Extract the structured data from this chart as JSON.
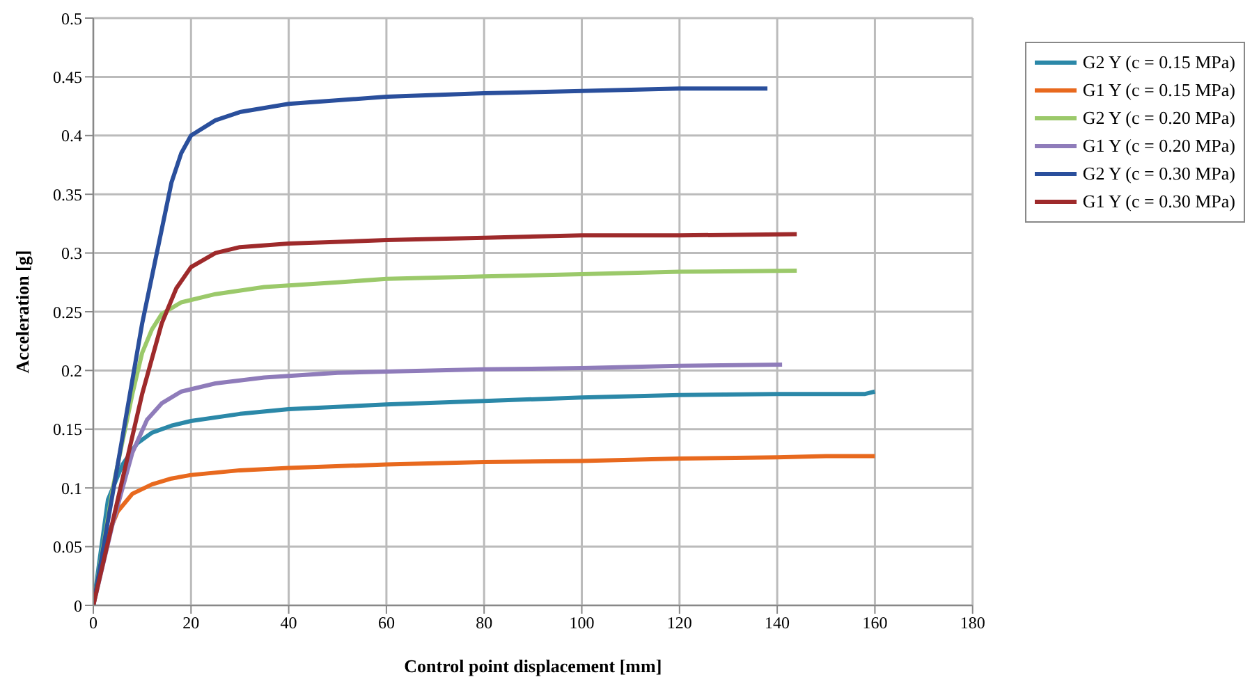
{
  "chart_data": {
    "type": "line",
    "xlabel": "Control point displacement  [mm]",
    "ylabel": "Acceleration [g]",
    "xlim": [
      0,
      180
    ],
    "xticks": [
      0,
      20,
      40,
      60,
      80,
      100,
      120,
      140,
      160,
      180
    ],
    "ylim": [
      0,
      0.5
    ],
    "yticks": [
      0,
      0.05,
      0.1,
      0.15,
      0.2,
      0.25,
      0.3,
      0.35,
      0.4,
      0.45,
      0.5
    ],
    "grid": true,
    "legend": "top right",
    "marker": "none",
    "line_style": "solid",
    "series": [
      {
        "name": "G2 Y (c = 0.15 MPa)",
        "color": "#2b88a8",
        "x": [
          0,
          3,
          6,
          9,
          12,
          16,
          20,
          30,
          40,
          60,
          80,
          100,
          120,
          140,
          158,
          160
        ],
        "values": [
          0,
          0.09,
          0.12,
          0.138,
          0.147,
          0.153,
          0.157,
          0.163,
          0.167,
          0.171,
          0.174,
          0.177,
          0.179,
          0.18,
          0.18,
          0.182
        ]
      },
      {
        "name": "G1 Y (c = 0.15 MPa)",
        "color": "#e8691e",
        "x": [
          0,
          3,
          5,
          8,
          12,
          16,
          20,
          30,
          40,
          60,
          80,
          100,
          120,
          140,
          150,
          160
        ],
        "values": [
          0,
          0.06,
          0.08,
          0.095,
          0.103,
          0.108,
          0.111,
          0.115,
          0.117,
          0.12,
          0.122,
          0.123,
          0.125,
          0.126,
          0.127,
          0.127
        ]
      },
      {
        "name": "G2 Y (c = 0.20 MPa)",
        "color": "#9bc96a",
        "x": [
          0,
          4,
          8,
          10,
          12,
          14,
          18,
          25,
          35,
          50,
          60,
          80,
          100,
          120,
          144
        ],
        "values": [
          0,
          0.1,
          0.18,
          0.215,
          0.235,
          0.248,
          0.258,
          0.265,
          0.271,
          0.275,
          0.278,
          0.28,
          0.282,
          0.284,
          0.285
        ]
      },
      {
        "name": "G1 Y (c = 0.20 MPa)",
        "color": "#8f7cba",
        "x": [
          0,
          4,
          8,
          11,
          14,
          18,
          25,
          35,
          50,
          60,
          80,
          100,
          120,
          141
        ],
        "values": [
          0,
          0.07,
          0.13,
          0.158,
          0.172,
          0.182,
          0.189,
          0.194,
          0.198,
          0.199,
          0.201,
          0.202,
          0.204,
          0.205
        ]
      },
      {
        "name": "G2 Y (c = 0.30 MPa)",
        "color": "#2a4f9c",
        "x": [
          0,
          5,
          10,
          13,
          16,
          18,
          20,
          25,
          30,
          40,
          60,
          80,
          100,
          120,
          138
        ],
        "values": [
          0,
          0.12,
          0.24,
          0.3,
          0.36,
          0.385,
          0.4,
          0.413,
          0.42,
          0.427,
          0.433,
          0.436,
          0.438,
          0.44,
          0.44
        ]
      },
      {
        "name": "G1 Y (c = 0.30 MPa)",
        "color": "#9e2a2b",
        "x": [
          0,
          5,
          10,
          14,
          17,
          20,
          25,
          30,
          40,
          60,
          80,
          100,
          120,
          144
        ],
        "values": [
          0,
          0.09,
          0.18,
          0.24,
          0.27,
          0.288,
          0.3,
          0.305,
          0.308,
          0.311,
          0.313,
          0.315,
          0.315,
          0.316
        ]
      }
    ]
  }
}
